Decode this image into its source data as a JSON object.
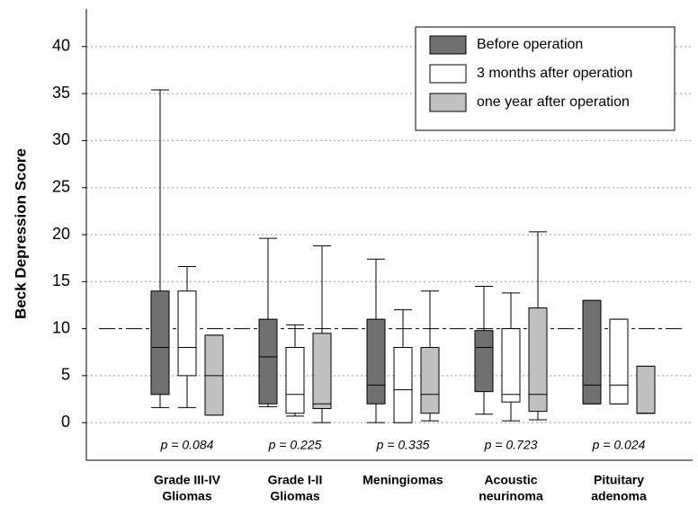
{
  "chart_data": {
    "type": "box",
    "ylabel": "Beck Depression Score",
    "ylim": [
      -4,
      44
    ],
    "yticks": [
      0,
      5,
      10,
      15,
      20,
      25,
      30,
      35,
      40
    ],
    "grid": true,
    "reference_line": 10,
    "legend": "top-right",
    "categories": [
      [
        "Grade III-IV",
        "Gliomas"
      ],
      [
        "Grade I-II",
        "Gliomas"
      ],
      [
        "Meningiomas"
      ],
      [
        "Acoustic",
        "neurinoma"
      ],
      [
        "Pituitary",
        "adenoma"
      ]
    ],
    "annotations": [
      "p = 0.084",
      "p = 0.225",
      "p = 0.335",
      "p = 0.723",
      "p = 0.024"
    ],
    "series": [
      {
        "name": "Before operation",
        "color": "#707070",
        "values": [
          {
            "min": 1.6,
            "q1": 3,
            "median": 8,
            "q3": 14,
            "max": 35.4
          },
          {
            "min": 1.7,
            "q1": 2,
            "median": 7,
            "q3": 11,
            "max": 19.6
          },
          {
            "min": 0,
            "q1": 2,
            "median": 4,
            "q3": 11,
            "max": 17.4
          },
          {
            "min": 0.9,
            "q1": 3.3,
            "median": 8,
            "q3": 9.8,
            "max": 14.5
          },
          {
            "min": 2,
            "q1": 2,
            "median": 4,
            "q3": 13,
            "max": 13
          }
        ]
      },
      {
        "name": "3 months after operation",
        "color": "#ffffff",
        "values": [
          {
            "min": 1.6,
            "q1": 5,
            "median": 8,
            "q3": 14,
            "max": 16.6
          },
          {
            "min": 0.7,
            "q1": 1,
            "median": 3,
            "q3": 8,
            "max": 10.4
          },
          {
            "min": 0,
            "q1": 0,
            "median": 3.5,
            "q3": 8,
            "max": 12
          },
          {
            "min": 0.2,
            "q1": 2.2,
            "median": 3,
            "q3": 10,
            "max": 13.8
          },
          {
            "min": 2,
            "q1": 2,
            "median": 4,
            "q3": 11,
            "max": 11
          }
        ]
      },
      {
        "name": "one year after operation",
        "color": "#c0c0c0",
        "values": [
          {
            "min": 0.8,
            "q1": 0.8,
            "median": 5,
            "q3": 9.3,
            "max": 9.3
          },
          {
            "min": 0,
            "q1": 1.5,
            "median": 2,
            "q3": 9.5,
            "max": 18.8
          },
          {
            "min": 0.2,
            "q1": 1,
            "median": 3,
            "q3": 8,
            "max": 14
          },
          {
            "min": 0.3,
            "q1": 1.2,
            "median": 3,
            "q3": 12.2,
            "max": 20.3
          },
          {
            "min": 1,
            "q1": 1,
            "median": 1,
            "q3": 6,
            "max": 6
          }
        ]
      }
    ]
  }
}
